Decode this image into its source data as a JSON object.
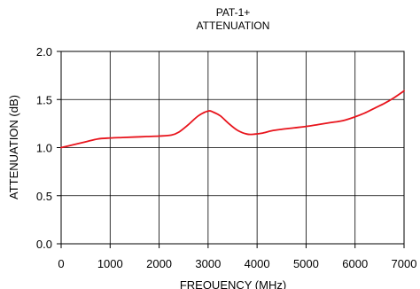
{
  "chart_data": {
    "type": "line",
    "title_lines": [
      "PAT-1+",
      "ATTENUATION"
    ],
    "xlabel": "FREQUENCY (MHz)",
    "ylabel": "ATTENUATION (dB)",
    "xlim": [
      0,
      7000
    ],
    "ylim": [
      0.0,
      2.0
    ],
    "x_ticks": [
      0,
      1000,
      2000,
      3000,
      4000,
      5000,
      6000,
      7000
    ],
    "x_tick_labels": [
      "0",
      "1000",
      "2000",
      "3000",
      "4000",
      "5000",
      "6000",
      "7000"
    ],
    "y_ticks": [
      0.0,
      0.5,
      1.0,
      1.5,
      2.0
    ],
    "y_tick_labels": [
      "0.0",
      "0.5",
      "1.0",
      "1.5",
      "2.0"
    ],
    "grid": true,
    "legend": "none",
    "series": [
      {
        "color": "#e8141c",
        "x": [
          0,
          250,
          500,
          750,
          1000,
          1250,
          1500,
          1750,
          2000,
          2250,
          2400,
          2600,
          2800,
          3000,
          3100,
          3250,
          3400,
          3600,
          3800,
          3950,
          4100,
          4300,
          4500,
          4750,
          5000,
          5250,
          5500,
          5750,
          6000,
          6200,
          6400,
          6600,
          6800,
          7000
        ],
        "y": [
          1.0,
          1.03,
          1.06,
          1.09,
          1.1,
          1.105,
          1.11,
          1.115,
          1.12,
          1.13,
          1.16,
          1.24,
          1.33,
          1.38,
          1.37,
          1.33,
          1.26,
          1.18,
          1.14,
          1.14,
          1.15,
          1.175,
          1.19,
          1.205,
          1.22,
          1.24,
          1.26,
          1.28,
          1.32,
          1.36,
          1.41,
          1.46,
          1.52,
          1.59
        ]
      }
    ]
  }
}
